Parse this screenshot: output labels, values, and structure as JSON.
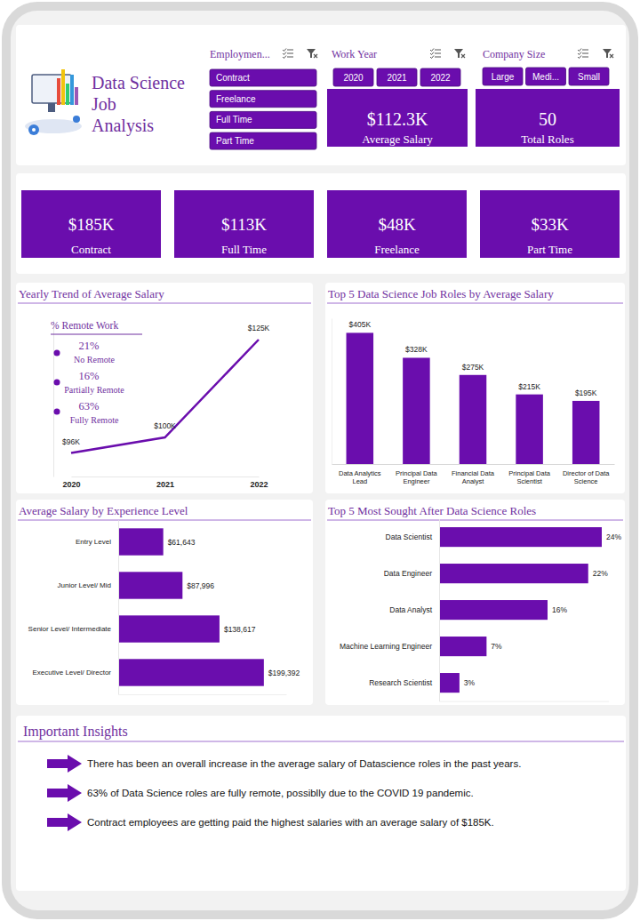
{
  "header": {
    "title_lines": [
      "Data Science",
      "Job",
      "Analysis"
    ]
  },
  "filters": [
    {
      "title": "Employmen...",
      "options": [
        "Contract",
        "Freelance",
        "Full Time",
        "Part Time"
      ]
    },
    {
      "title": "Work Year",
      "options": [
        "2020",
        "2021",
        "2022"
      ]
    },
    {
      "title": "Company Size",
      "options": [
        "Large",
        "Medi...",
        "Small"
      ]
    }
  ],
  "summary_cards": [
    {
      "value": "$112.3K",
      "label": "Average Salary"
    },
    {
      "value": "50",
      "label": "Total Roles"
    }
  ],
  "kpis": [
    {
      "value": "$185K",
      "label": "Contract"
    },
    {
      "value": "$113K",
      "label": "Full Time"
    },
    {
      "value": "$48K",
      "label": "Freelance"
    },
    {
      "value": "$33K",
      "label": "Part Time"
    }
  ],
  "chart_data": [
    {
      "type": "line",
      "title": "Yearly Trend of Average Salary",
      "categories": [
        "2020",
        "2021",
        "2022"
      ],
      "values": [
        96,
        100,
        125
      ],
      "value_labels": [
        "$96K",
        "$100K",
        "$125K"
      ],
      "data_labels": true,
      "color": "#6a0dad",
      "ylim": [
        90,
        130
      ],
      "tick_labels": "x",
      "remote_work": {
        "title": "% Remote Work",
        "categories": [
          "No Remote",
          "Partially Remote",
          "Fully Remote"
        ],
        "values": [
          21,
          16,
          63
        ],
        "value_labels": [
          "21%",
          "16%",
          "63%"
        ]
      }
    },
    {
      "type": "bar",
      "title": "Top 5 Data Science Job Roles by Average Salary",
      "categories": [
        "Data Analytics Lead",
        "Principal Data Engineer",
        "Financial Data Analyst",
        "Principal Data Scientist",
        "Director of Data Science"
      ],
      "values": [
        405,
        328,
        275,
        215,
        195
      ],
      "value_labels": [
        "$405K",
        "$328K",
        "$275K",
        "$215K",
        "$195K"
      ],
      "data_labels": true,
      "color": "#6a0dad",
      "ylim": [
        0,
        450
      ],
      "tick_labels": "x"
    },
    {
      "type": "bar",
      "orientation": "horizontal",
      "title": "Average Salary by Experience Level",
      "categories": [
        "Entry Level",
        "Junior Level/ Mid",
        "Senior Level/ Intermediate",
        "Executive Level/ Director"
      ],
      "values": [
        61643,
        87996,
        138617,
        199392
      ],
      "value_labels": [
        "$61,643",
        "$87,996",
        "$138,617",
        "$199,392"
      ],
      "data_labels": true,
      "color": "#6a0dad",
      "xlim": [
        0,
        230000
      ],
      "tick_labels": "y"
    },
    {
      "type": "bar",
      "orientation": "horizontal",
      "title": "Top 5 Most Sought After Data Science Roles",
      "categories": [
        "Data Scientist",
        "Data Engineer",
        "Data Analyst",
        "Machine Learning Engineer",
        "Research Scientist"
      ],
      "values": [
        24,
        22,
        16,
        7,
        3
      ],
      "value_labels": [
        "24%",
        "22%",
        "16%",
        "7%",
        "3%"
      ],
      "data_labels": true,
      "color": "#6a0dad",
      "xlim": [
        0,
        25
      ],
      "tick_labels": "y"
    }
  ],
  "insights": {
    "title": "Important Insights",
    "items": [
      "There has been an overall increase in the average salary of Datascience roles in the past years.",
      "63% of Data Science roles are fully remote, possiblly due to the COVID 19 pandemic.",
      "Contract employees are getting paid the highest salaries with an average salary of $185K."
    ]
  }
}
